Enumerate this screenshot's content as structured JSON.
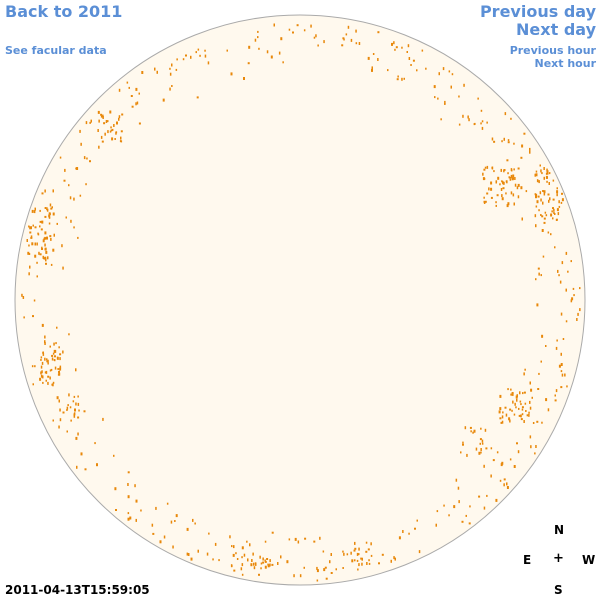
{
  "nav": {
    "back_year": "Back to 2011",
    "facular_data": "See facular data",
    "previous_day": "Previous day",
    "next_day": "Next day",
    "previous_hour": "Previous hour",
    "next_hour": "Next hour"
  },
  "compass": {
    "north": "N",
    "south": "S",
    "east": "E",
    "west": "W",
    "center": "+"
  },
  "timestamp": "2011-04-13T15:59:05",
  "colors": {
    "link": "#5b8fd6",
    "disk_fill": "#fff9ee",
    "disk_stroke": "#aaaaaa",
    "facula": "#e8880a"
  }
}
